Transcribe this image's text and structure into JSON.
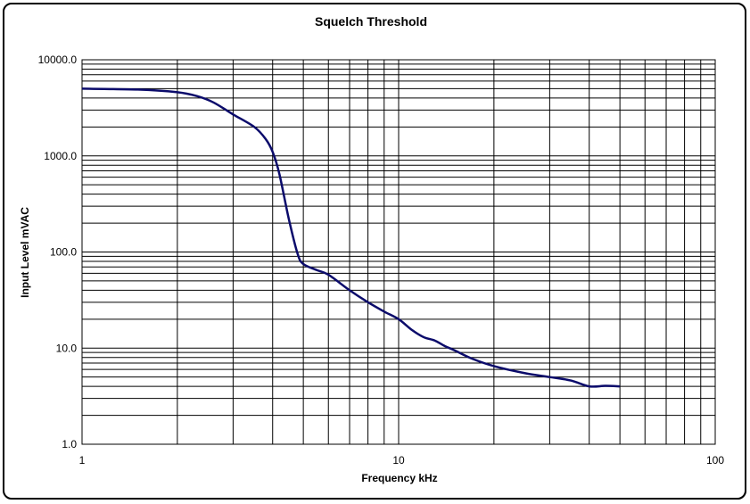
{
  "chart_data": {
    "type": "line",
    "title": "Squelch Threshold",
    "xlabel": "Frequency kHz",
    "ylabel": "Input Level mVAC",
    "xscale": "log",
    "yscale": "log",
    "xlim": [
      1,
      100
    ],
    "ylim": [
      1,
      10000
    ],
    "grid": true,
    "legend": "none",
    "x_tick_labels": [
      "1",
      "10",
      "100"
    ],
    "y_tick_labels": [
      "1.0",
      "10.0",
      "100.0",
      "1000.0",
      "10000.0"
    ],
    "line_color": "#0b0b6b",
    "series": [
      {
        "x": [
          1,
          1.5,
          2,
          2.3,
          2.6,
          3,
          3.5,
          3.8,
          4,
          4.2,
          4.5,
          4.8,
          5,
          5.5,
          6,
          7,
          8,
          9,
          10,
          11,
          12,
          13,
          14,
          15,
          17,
          20,
          25,
          30,
          35,
          40,
          45,
          50
        ],
        "y": [
          5000,
          4900,
          4600,
          4200,
          3600,
          2700,
          2000,
          1500,
          1100,
          650,
          220,
          95,
          75,
          65,
          58,
          40,
          30,
          24,
          20,
          15.5,
          13,
          12,
          10.5,
          9.5,
          7.8,
          6.5,
          5.5,
          5.0,
          4.6,
          4.0,
          4.05,
          4.0
        ]
      }
    ]
  }
}
